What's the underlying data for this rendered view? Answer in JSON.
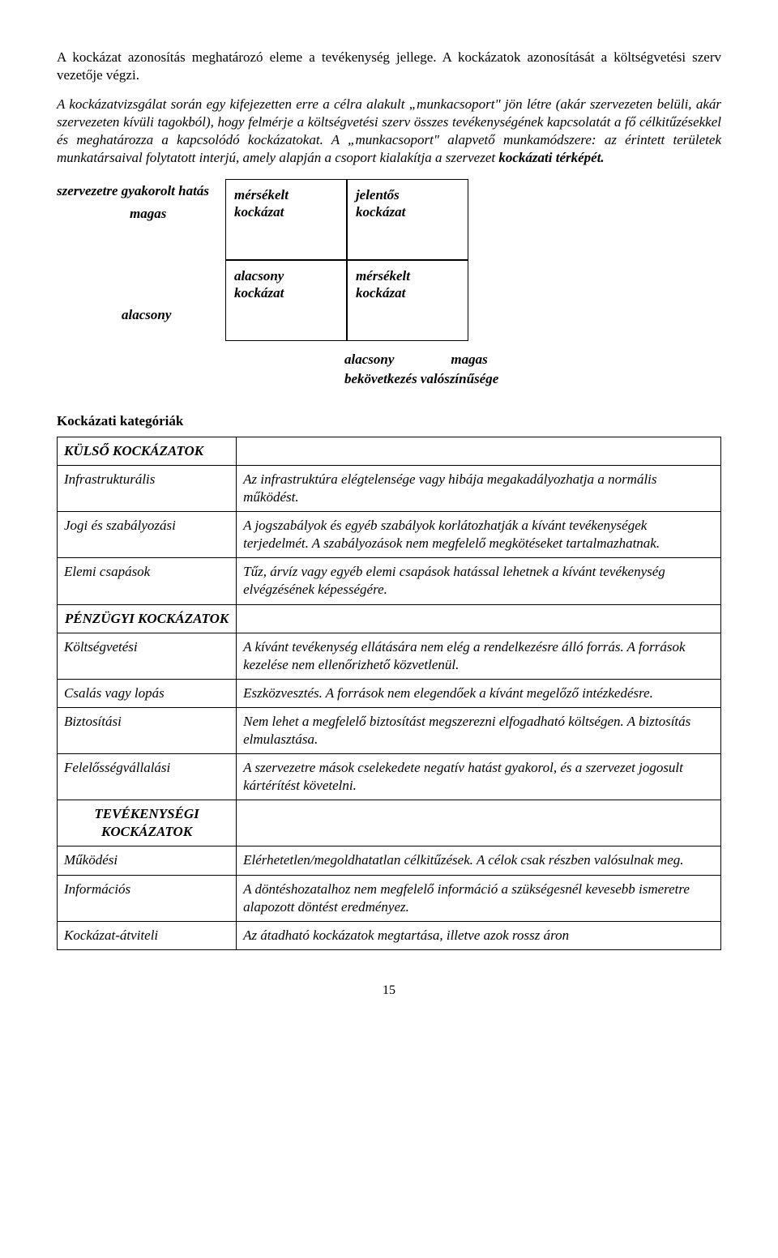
{
  "para1": "A kockázat azonosítás meghatározó eleme a tevékenység jellege. A kockázatok azonosítását a költségvetési szerv vezetője végzi.",
  "para2_a": "A kockázatvizsgálat során egy kifejezetten erre a célra alakult „munkacsoport\" jön létre (akár szervezeten belüli, akár szervezeten kívüli tagokból), hogy felmérje a költségvetési szerv összes tevékenységének kapcsolatát a fő célkitűzésekkel és meghatározza a kapcsolódó kockázatokat. A „munkacsoport\" alapvető munkamódszere: az érintett területek munkatársaival folytatott interjú, amely alapján a csoport kialakítja a szervezet ",
  "para2_b": "kockázati térképét.",
  "matrix": {
    "y_axis_title": "szervezetre gyakorolt hatás",
    "y_high": "magas",
    "y_low": "alacsony",
    "x_low": "alacsony",
    "x_high": "magas",
    "x_axis_title": "bekövetkezés valószínűsége",
    "c11a": "mérsékelt",
    "c11b": "kockázat",
    "c12a": "jelentős",
    "c12b": "kockázat",
    "c21a": "alacsony",
    "c21b": "kockázat",
    "c22a": "mérsékelt",
    "c22b": "kockázat"
  },
  "cat_title": "Kockázati kategóriák",
  "groups": {
    "g1": "KÜLSŐ KOCKÁZATOK",
    "g2": "PÉNZÜGYI KOCKÁZATOK",
    "g3": "TEVÉKENYSÉGI KOCKÁZATOK"
  },
  "rows": {
    "r1": {
      "k": "Infrastrukturális",
      "v": "Az infrastruktúra elégtelensége vagy hibája megakadályozhatja a normális működést."
    },
    "r2": {
      "k": "Jogi és szabályozási",
      "v": "A jogszabályok és egyéb szabályok korlátozhatják a kívánt tevékenységek terjedelmét. A szabályozások nem megfelelő megkötéseket tartalmazhatnak."
    },
    "r3": {
      "k": "Elemi csapások",
      "v": "Tűz, árvíz vagy egyéb elemi csapások hatással lehetnek a kívánt tevékenység elvégzésének képességére."
    },
    "r4": {
      "k": "Költségvetési",
      "v": "A kívánt tevékenység ellátására nem elég a rendelkezésre álló forrás. A források kezelése nem ellenőrizhető közvetlenül."
    },
    "r5": {
      "k": "Csalás vagy lopás",
      "v": "Eszközvesztés. A források nem elegendőek a kívánt megelőző intézkedésre."
    },
    "r6": {
      "k": "Biztosítási",
      "v": "Nem lehet a megfelelő biztosítást megszerezni elfogadható költségen. A biztosítás elmulasztása."
    },
    "r7": {
      "k": "Felelősségvállalási",
      "v": "A szervezetre mások cselekedete negatív hatást gyakorol, és a szervezet jogosult kártérítést követelni."
    },
    "r8": {
      "k": "Működési",
      "v": "Elérhetetlen/megoldhatatlan célkitűzések. A célok csak részben valósulnak meg."
    },
    "r9": {
      "k": "Információs",
      "v": "A döntéshozatalhoz nem megfelelő információ a szükségesnél kevesebb ismeretre alapozott döntést eredményez."
    },
    "r10": {
      "k": "Kockázat-átviteli",
      "v": "Az átadható kockázatok megtartása, illetve azok rossz áron"
    }
  },
  "page_number": "15"
}
